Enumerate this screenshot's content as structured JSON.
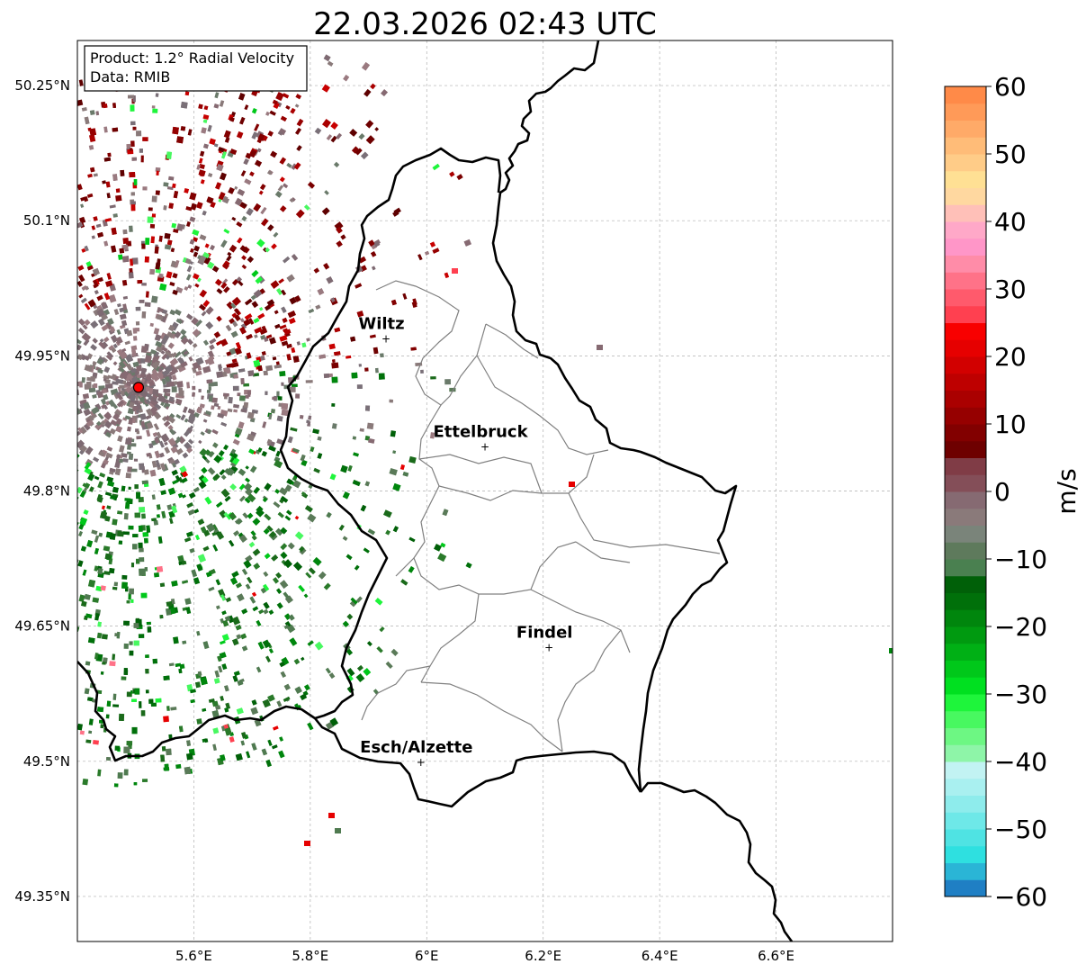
{
  "title": "22.03.2026 02:43 UTC",
  "info_box": {
    "product": "Product: 1.2° Radial Velocity",
    "data": "Data: RMIB"
  },
  "axes": {
    "lon_ticks": [
      "5.6°E",
      "5.8°E",
      "6°E",
      "6.2°E",
      "6.4°E",
      "6.6°E"
    ],
    "lat_ticks": [
      "50.25°N",
      "50.1°N",
      "49.95°N",
      "49.8°N",
      "49.65°N",
      "49.5°N",
      "49.35°N"
    ],
    "lon_range": [
      5.4,
      6.8
    ],
    "lat_range": [
      49.3,
      50.3
    ],
    "grid": true
  },
  "cities": [
    {
      "name": "Wiltz",
      "lon": 5.93,
      "lat": 49.97
    },
    {
      "name": "Ettelbruck",
      "lon": 6.1,
      "lat": 49.85
    },
    {
      "name": "Findel",
      "lon": 6.21,
      "lat": 49.627
    },
    {
      "name": "Esch/Alzette",
      "lon": 5.99,
      "lat": 49.5
    }
  ],
  "radar_site": {
    "lon": 5.505,
    "lat": 49.915,
    "color": "#ff0000"
  },
  "colorbar": {
    "label": "m/s",
    "min": -60,
    "max": 60,
    "ticks": [
      "60",
      "50",
      "40",
      "30",
      "20",
      "10",
      "0",
      "−10",
      "−20",
      "−30",
      "−40",
      "−50",
      "−60"
    ],
    "colors_bottom_to_top": [
      "#1f7fc4",
      "#2ab5d6",
      "#2ee0e0",
      "#4fe3e3",
      "#6ee8e8",
      "#8eecec",
      "#a9f0f0",
      "#c2f3f3",
      "#8ef5a8",
      "#6df783",
      "#48f860",
      "#1ef53b",
      "#00e020",
      "#00c81a",
      "#00b015",
      "#009a10",
      "#00860d",
      "#00700a",
      "#006008",
      "#4a8050",
      "#5e7a5c",
      "#7a847a",
      "#8a7a7a",
      "#866a72",
      "#844e58",
      "#803c46",
      "#6e0000",
      "#820000",
      "#960000",
      "#aa0000",
      "#be0000",
      "#d20000",
      "#e60000",
      "#f80000",
      "#ff4050",
      "#ff5a6c",
      "#ff7288",
      "#ff8ca8",
      "#ff96c8",
      "#ffa8c8",
      "#ffc0b8",
      "#ffd8a0",
      "#ffe094",
      "#ffcc88",
      "#ffbc78",
      "#ffaa68",
      "#ff9a58",
      "#ff8a48"
    ]
  }
}
